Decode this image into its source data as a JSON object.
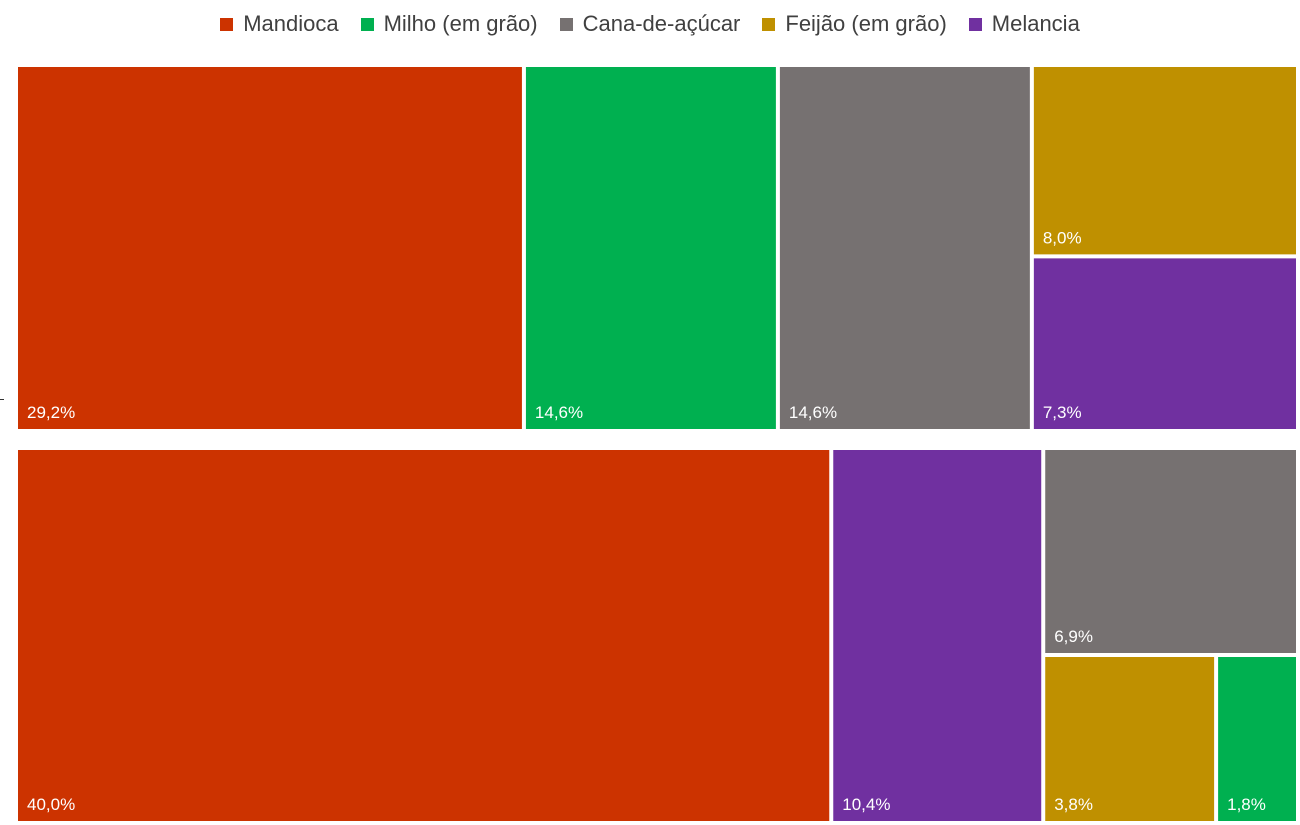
{
  "chart_data": {
    "type": "treemap",
    "colors": {
      "Mandioca": "#cc3300",
      "Milho (em grão)": "#00b050",
      "Cana-de-açúcar": "#767171",
      "Feijão (em grão)": "#bf9000",
      "Melancia": "#7030a0"
    },
    "legend": [
      "Mandioca",
      "Milho (em grão)",
      "Cana-de-açúcar",
      "Feijão (em grão)",
      "Melancia"
    ],
    "groups": [
      {
        "tiles": [
          {
            "category": "Mandioca",
            "value": 29.2,
            "label": "29,2%"
          },
          {
            "category": "Milho (em grão)",
            "value": 14.6,
            "label": "14,6%"
          },
          {
            "category": "Cana-de-açúcar",
            "value": 14.6,
            "label": "14,6%"
          },
          {
            "category": "Feijão (em grão)",
            "value": 8.0,
            "label": "8,0%"
          },
          {
            "category": "Melancia",
            "value": 7.3,
            "label": "7,3%"
          }
        ]
      },
      {
        "tiles": [
          {
            "category": "Mandioca",
            "value": 40.0,
            "label": "40,0%"
          },
          {
            "category": "Melancia",
            "value": 10.4,
            "label": "10,4%"
          },
          {
            "category": "Cana-de-açúcar",
            "value": 6.9,
            "label": "6,9%"
          },
          {
            "category": "Feijão (em grão)",
            "value": 3.8,
            "label": "3,8%"
          },
          {
            "category": "Milho (em grão)",
            "value": 1.8,
            "label": "1,8%"
          }
        ]
      }
    ]
  }
}
